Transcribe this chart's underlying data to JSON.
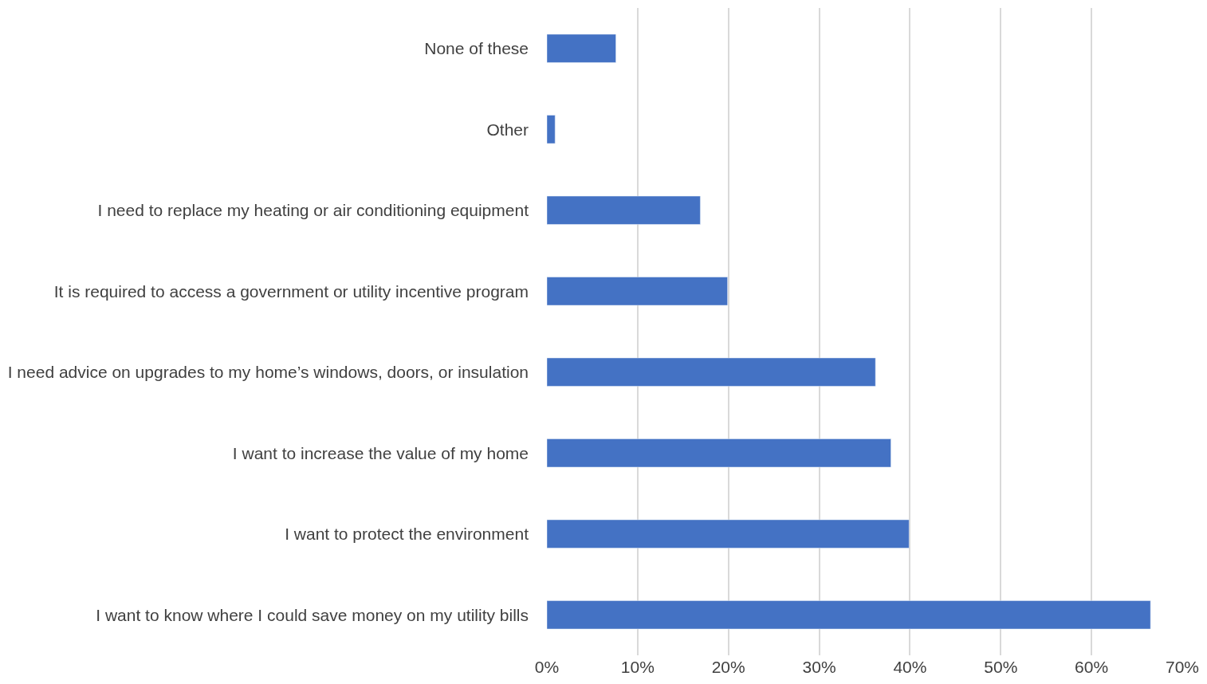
{
  "chart_data": {
    "type": "bar",
    "orientation": "horizontal",
    "categories": [
      "None of these",
      "Other",
      "I need to replace my heating or air conditioning equipment",
      "It is required to access a government or utility incentive program",
      "I need advice on upgrades to my home’s windows, doors, or insulation",
      "I want to increase the value of my home",
      "I want to protect the environment",
      "I want to know where I could save money on my utility bills"
    ],
    "values": [
      7.6,
      0.9,
      16.9,
      19.9,
      36.2,
      37.9,
      39.9,
      66.5
    ],
    "color": "#4472c4",
    "xlim": [
      0,
      70
    ],
    "xticks": [
      {
        "value": 0,
        "label": "0%"
      },
      {
        "value": 10,
        "label": "10%"
      },
      {
        "value": 20,
        "label": "20%"
      },
      {
        "value": 30,
        "label": "30%"
      },
      {
        "value": 40,
        "label": "40%"
      },
      {
        "value": 50,
        "label": "50%"
      },
      {
        "value": 60,
        "label": "60%"
      },
      {
        "value": 70,
        "label": "70%"
      }
    ],
    "grid": "x"
  }
}
